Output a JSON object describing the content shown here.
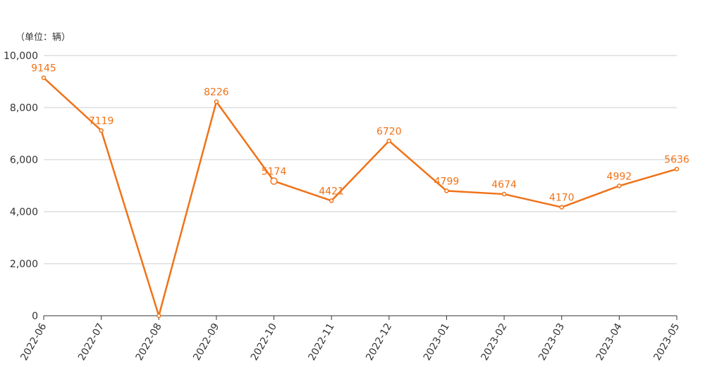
{
  "chart_data": {
    "type": "line",
    "unit_label": "（单位：辆）",
    "categories": [
      "2022-06",
      "2022-07",
      "2022-08",
      "2022-09",
      "2022-10",
      "2022-11",
      "2022-12",
      "2023-01",
      "2023-02",
      "2023-03",
      "2023-04",
      "2023-05"
    ],
    "series": [
      {
        "values": [
          9145,
          7119,
          0,
          8226,
          5174,
          4421,
          6720,
          4799,
          4674,
          4170,
          4992,
          5636
        ],
        "labels": [
          "9145",
          "7119",
          "",
          "8226",
          "5174",
          "4421",
          "6720",
          "4799",
          "4674",
          "4170",
          "4992",
          "5636"
        ]
      }
    ],
    "ylim": [
      0,
      10000
    ],
    "y_ticks": [
      {
        "value": 0,
        "label": "0"
      },
      {
        "value": 2000,
        "label": "2,000"
      },
      {
        "value": 4000,
        "label": "4,000"
      },
      {
        "value": 6000,
        "label": "6,000"
      },
      {
        "value": 8000,
        "label": "8,000"
      },
      {
        "value": 10000,
        "label": "10,000"
      }
    ],
    "grid": true,
    "legend": "none",
    "highlighted_point": "2022-10",
    "colors": {
      "line": "#F07218",
      "grid": "#CCCCCC",
      "axis": "#333333",
      "text": "#333333"
    }
  }
}
